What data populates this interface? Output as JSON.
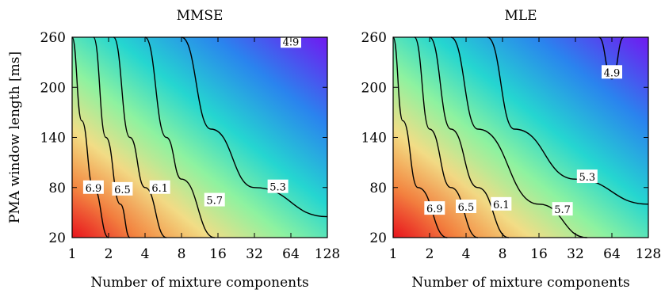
{
  "chart_data": [
    {
      "type": "heatmap",
      "title": "MMSE",
      "xlabel": "Number of mixture components",
      "ylabel": "PMA window length [ms]",
      "x_scale": "log2",
      "xlim": [
        1,
        128
      ],
      "ylim": [
        20,
        260
      ],
      "xticks": [
        "1",
        "2",
        "4",
        "8",
        "16",
        "32",
        "64",
        "128"
      ],
      "yticks": [
        "20",
        "80",
        "140",
        "200",
        "260"
      ],
      "colormap": [
        "#e8141c",
        "#f58a3a",
        "#f2dd86",
        "#8ef2a0",
        "#25d6d0",
        "#2a84ee",
        "#7118f0"
      ],
      "value_range": [
        4.7,
        7.3
      ],
      "contours": [
        {
          "level": "6.9",
          "points": [
            [
              1,
              260
            ],
            [
              1.2,
              160
            ],
            [
              1.5,
              80
            ],
            [
              2,
              20
            ]
          ]
        },
        {
          "level": "6.5",
          "points": [
            [
              1.5,
              260
            ],
            [
              1.9,
              140
            ],
            [
              2.5,
              60
            ],
            [
              3,
              20
            ]
          ]
        },
        {
          "level": "6.1",
          "points": [
            [
              2.2,
              260
            ],
            [
              3,
              140
            ],
            [
              4,
              80
            ],
            [
              6,
              20
            ]
          ]
        },
        {
          "level": "5.7",
          "points": [
            [
              4,
              260
            ],
            [
              6,
              140
            ],
            [
              8,
              90
            ],
            [
              15,
              20
            ]
          ]
        },
        {
          "level": "5.3",
          "points": [
            [
              8,
              260
            ],
            [
              14,
              150
            ],
            [
              32,
              80
            ],
            [
              128,
              45
            ]
          ]
        },
        {
          "level": "4.9",
          "points": [
            [
              64,
              250
            ]
          ]
        }
      ],
      "contour_labels": [
        {
          "text": "6.9",
          "x": 1.5,
          "y": 80
        },
        {
          "text": "6.5",
          "x": 2.6,
          "y": 78
        },
        {
          "text": "6.1",
          "x": 5.3,
          "y": 80
        },
        {
          "text": "5.7",
          "x": 15.0,
          "y": 65
        },
        {
          "text": "5.3",
          "x": 50.0,
          "y": 81
        },
        {
          "text": "4.9",
          "x": 64.0,
          "y": 255
        }
      ]
    },
    {
      "type": "heatmap",
      "title": "MLE",
      "xlabel": "Number of mixture components",
      "ylabel": "",
      "x_scale": "log2",
      "xlim": [
        1,
        128
      ],
      "ylim": [
        20,
        260
      ],
      "xticks": [
        "1",
        "2",
        "4",
        "8",
        "16",
        "32",
        "64",
        "128"
      ],
      "yticks": [
        "20",
        "80",
        "140",
        "200",
        "260"
      ],
      "colormap": [
        "#e8141c",
        "#f58a3a",
        "#f2dd86",
        "#8ef2a0",
        "#25d6d0",
        "#2a84ee",
        "#7118f0"
      ],
      "value_range": [
        4.7,
        7.3
      ],
      "contours": [
        {
          "level": "6.9",
          "points": [
            [
              1,
              260
            ],
            [
              1.2,
              160
            ],
            [
              1.6,
              80
            ],
            [
              2.8,
              20
            ]
          ]
        },
        {
          "level": "6.5",
          "points": [
            [
              1.5,
              260
            ],
            [
              2,
              150
            ],
            [
              3,
              80
            ],
            [
              5,
              20
            ]
          ]
        },
        {
          "level": "6.1",
          "points": [
            [
              2,
              260
            ],
            [
              3,
              150
            ],
            [
              5,
              80
            ],
            [
              9,
              20
            ]
          ]
        },
        {
          "level": "5.7",
          "points": [
            [
              3,
              260
            ],
            [
              5,
              150
            ],
            [
              16,
              60
            ],
            [
              40,
              20
            ]
          ]
        },
        {
          "level": "5.3",
          "points": [
            [
              6,
              260
            ],
            [
              10,
              150
            ],
            [
              32,
              90
            ],
            [
              128,
              60
            ]
          ]
        },
        {
          "level": "4.9",
          "points": [
            [
              50,
              260
            ],
            [
              64,
              210
            ],
            [
              80,
              260
            ]
          ]
        }
      ],
      "contour_labels": [
        {
          "text": "6.9",
          "x": 2.2,
          "y": 55
        },
        {
          "text": "6.5",
          "x": 4.0,
          "y": 57
        },
        {
          "text": "6.1",
          "x": 7.8,
          "y": 60
        },
        {
          "text": "5.7",
          "x": 25.0,
          "y": 54
        },
        {
          "text": "5.3",
          "x": 40.0,
          "y": 93
        },
        {
          "text": "4.9",
          "x": 64.0,
          "y": 218
        }
      ]
    }
  ]
}
